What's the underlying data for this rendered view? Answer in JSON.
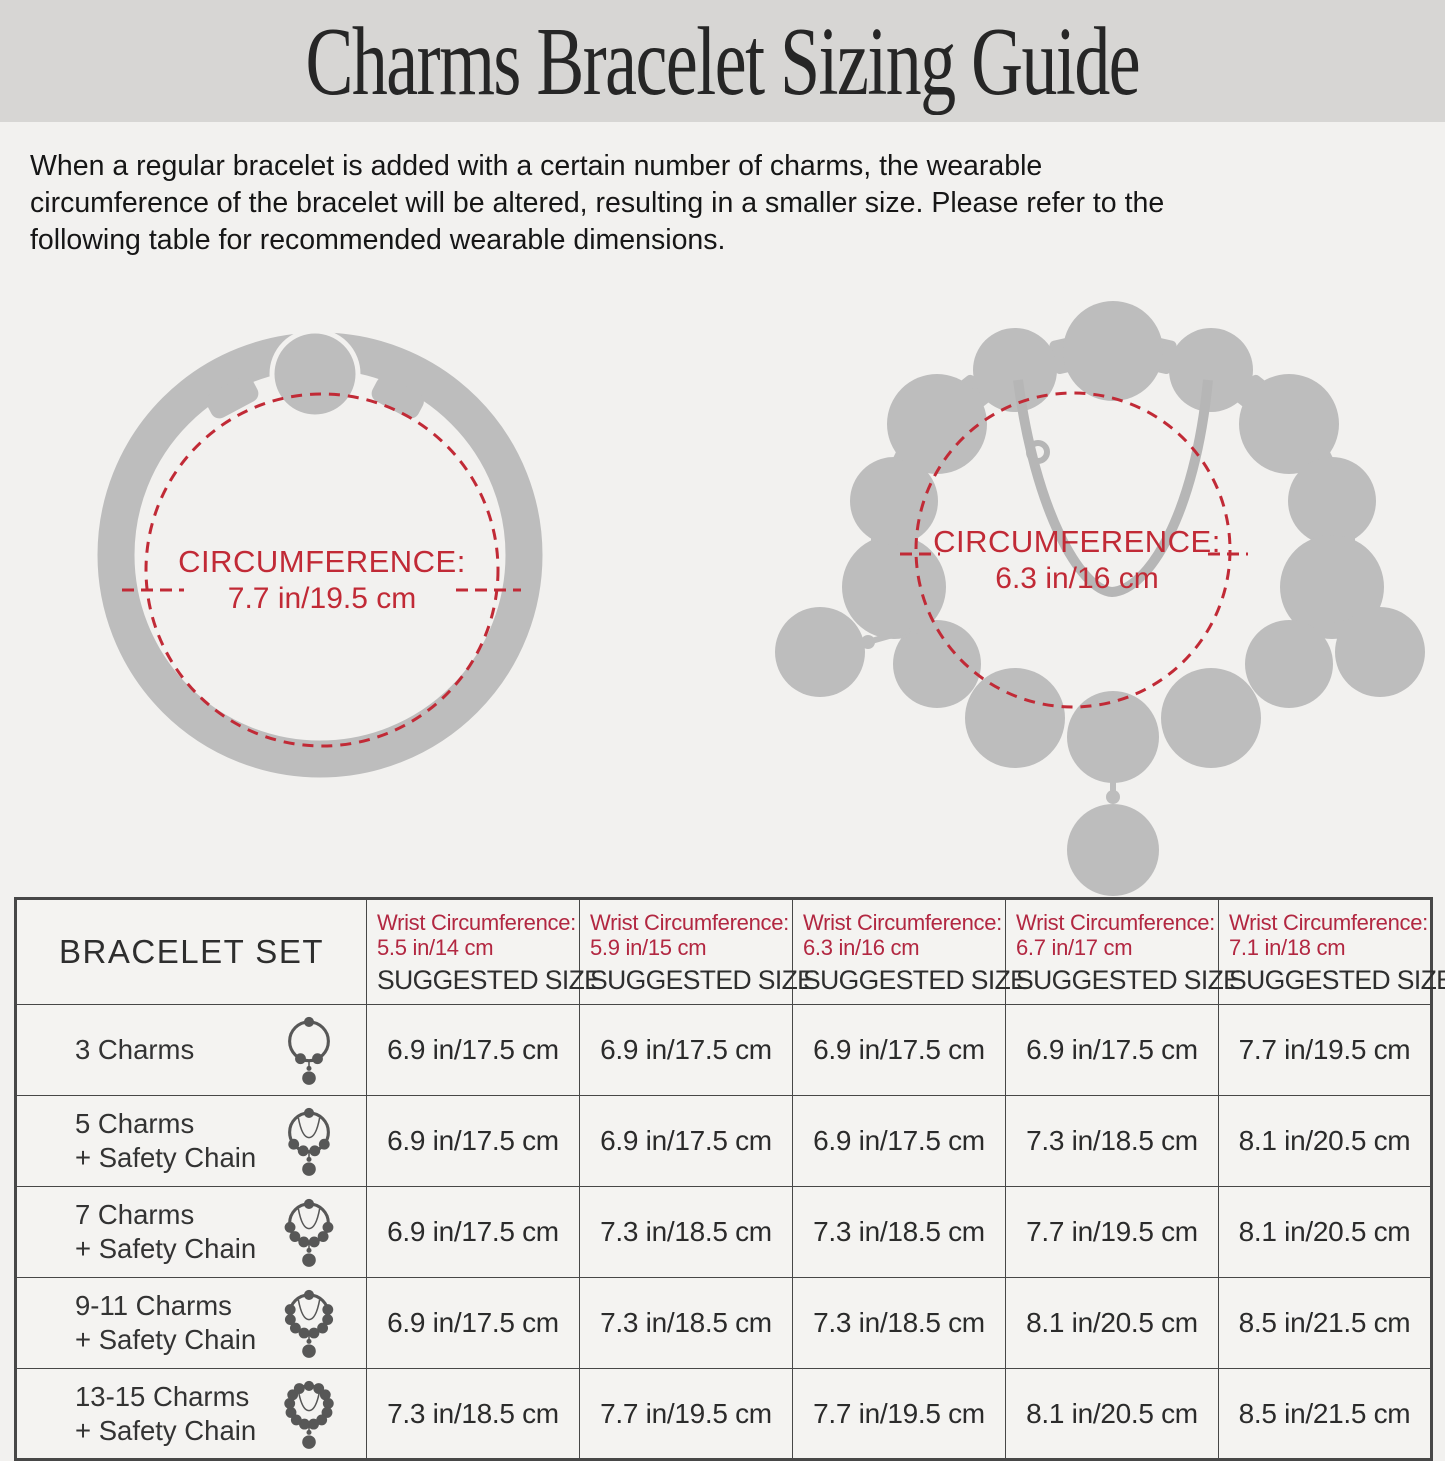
{
  "page": {
    "title": "Charms Bracelet Sizing Guide",
    "intro_lines": [
      "When a regular bracelet is added with a certain number of charms, the wearable",
      "circumference of the bracelet will be altered, resulting in a smaller size. Please refer to the",
      "following table for recommended wearable dimensions."
    ]
  },
  "colors": {
    "page_bg": "#f2f1ef",
    "band_bg": "#d7d6d4",
    "silhouette_gray": "#bdbdbd",
    "diagram_red": "#c12a36",
    "table_red": "#b22741",
    "table_border": "#474747",
    "icon_gray": "#575757"
  },
  "diagrams": [
    {
      "name": "plain-bracelet",
      "label": "CIRCUMFERENCE:",
      "value": "7.7 in/19.5 cm"
    },
    {
      "name": "charm-bracelet",
      "label": "CIRCUMFERENCE:",
      "value": "6.3 in/16 cm"
    }
  ],
  "table": {
    "first_header": "BRACELET SET",
    "wrist_label": "Wrist Circumference:",
    "suggested_label": "SUGGESTED SIZE",
    "columns": [
      {
        "wrist": "5.5 in/14 cm"
      },
      {
        "wrist": "5.9 in/15 cm"
      },
      {
        "wrist": "6.3 in/16 cm"
      },
      {
        "wrist": "6.7 in/17 cm"
      },
      {
        "wrist": "7.1 in/18 cm"
      }
    ],
    "rows": [
      {
        "label": "3 Charms",
        "label2": "",
        "icon": {
          "charms": 3,
          "chain": false
        },
        "values": [
          "6.9 in/17.5 cm",
          "6.9 in/17.5 cm",
          "6.9 in/17.5 cm",
          "6.9 in/17.5 cm",
          "7.7 in/19.5 cm"
        ]
      },
      {
        "label": "5 Charms",
        "label2": "+ Safety Chain",
        "icon": {
          "charms": 5,
          "chain": true
        },
        "values": [
          "6.9 in/17.5 cm",
          "6.9 in/17.5 cm",
          "6.9 in/17.5 cm",
          "7.3 in/18.5 cm",
          "8.1 in/20.5 cm"
        ]
      },
      {
        "label": "7 Charms",
        "label2": "+ Safety Chain",
        "icon": {
          "charms": 7,
          "chain": true
        },
        "values": [
          "6.9 in/17.5 cm",
          "7.3 in/18.5 cm",
          "7.3 in/18.5 cm",
          "7.7 in/19.5 cm",
          "8.1 in/20.5 cm"
        ]
      },
      {
        "label": "9-11 Charms",
        "label2": "+ Safety Chain",
        "icon": {
          "charms": 9,
          "chain": true
        },
        "values": [
          "6.9 in/17.5 cm",
          "7.3 in/18.5 cm",
          "7.3 in/18.5 cm",
          "8.1 in/20.5 cm",
          "8.5 in/21.5 cm"
        ]
      },
      {
        "label": "13-15 Charms",
        "label2": "+ Safety Chain",
        "icon": {
          "charms": 13,
          "chain": true
        },
        "values": [
          "7.3 in/18.5 cm",
          "7.7 in/19.5 cm",
          "7.7 in/19.5 cm",
          "8.1 in/20.5 cm",
          "8.5 in/21.5 cm"
        ]
      }
    ]
  }
}
